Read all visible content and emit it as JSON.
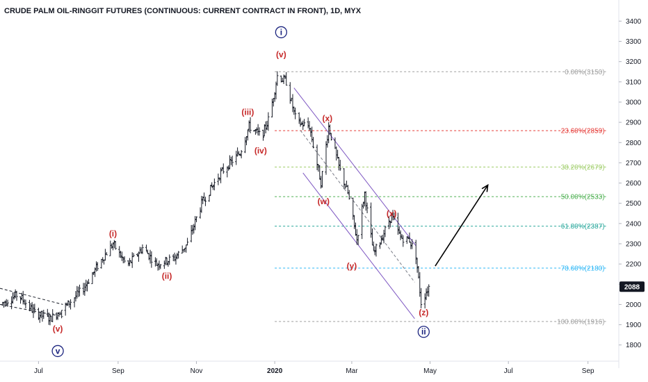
{
  "chart_data": {
    "type": "ohlc",
    "title": "CRUDE PALM OIL-RINGGIT FUTURES (CONTINUOUS: CURRENT CONTRACT IN FRONT), 1D, MYX",
    "xlabel": "",
    "ylabel": "",
    "ylim": [
      1720,
      3470
    ],
    "y_ticks": [
      1800,
      1900,
      2000,
      2100,
      2200,
      2300,
      2400,
      2500,
      2600,
      2700,
      2800,
      2900,
      3000,
      3100,
      3200,
      3300,
      3400
    ],
    "x_ticks": [
      {
        "label": "Jul",
        "date": "2019-07-01",
        "bold": false
      },
      {
        "label": "Sep",
        "date": "2019-09-01",
        "bold": false
      },
      {
        "label": "Nov",
        "date": "2019-11-01",
        "bold": false
      },
      {
        "label": "2020",
        "date": "2020-01-01",
        "bold": true
      },
      {
        "label": "Mar",
        "date": "2020-03-01",
        "bold": false
      },
      {
        "label": "May",
        "date": "2020-05-01",
        "bold": false
      },
      {
        "label": "Jul",
        "date": "2020-07-01",
        "bold": false
      },
      {
        "label": "Sep",
        "date": "2020-09-01",
        "bold": false
      }
    ],
    "x_range": [
      "2019-06-01",
      "2020-09-25"
    ],
    "current_price": {
      "label": "2088",
      "value": 2088,
      "date": "2020-04-30"
    },
    "price_path": [
      [
        "2019-06-01",
        2000
      ],
      [
        "2019-06-15",
        2050
      ],
      [
        "2019-06-28",
        1960
      ],
      [
        "2019-07-10",
        1930
      ],
      [
        "2019-07-22",
        1990
      ],
      [
        "2019-08-05",
        2080
      ],
      [
        "2019-08-20",
        2230
      ],
      [
        "2019-08-28",
        2300
      ],
      [
        "2019-09-08",
        2190
      ],
      [
        "2019-09-20",
        2280
      ],
      [
        "2019-10-01",
        2200
      ],
      [
        "2019-10-15",
        2230
      ],
      [
        "2019-10-25",
        2300
      ],
      [
        "2019-11-05",
        2500
      ],
      [
        "2019-11-20",
        2650
      ],
      [
        "2019-12-05",
        2750
      ],
      [
        "2019-12-12",
        2880
      ],
      [
        "2019-12-22",
        2830
      ],
      [
        "2019-12-28",
        2930
      ],
      [
        "2020-01-03",
        3130
      ],
      [
        "2020-01-10",
        3100
      ],
      [
        "2020-01-18",
        2900
      ],
      [
        "2020-01-28",
        2880
      ],
      [
        "2020-02-06",
        2600
      ],
      [
        "2020-02-12",
        2880
      ],
      [
        "2020-02-20",
        2680
      ],
      [
        "2020-02-27",
        2550
      ],
      [
        "2020-03-05",
        2320
      ],
      [
        "2020-03-11",
        2550
      ],
      [
        "2020-03-18",
        2250
      ],
      [
        "2020-03-25",
        2340
      ],
      [
        "2020-04-01",
        2440
      ],
      [
        "2020-04-08",
        2330
      ],
      [
        "2020-04-15",
        2320
      ],
      [
        "2020-04-20",
        2240
      ],
      [
        "2020-04-24",
        2010
      ],
      [
        "2020-04-30",
        2088
      ]
    ],
    "fib_levels": [
      {
        "label": "0.00%(3150)",
        "value": 3150,
        "color": "#9e9e9e"
      },
      {
        "label": "23.60%(2859)",
        "value": 2859,
        "color": "#e53935"
      },
      {
        "label": "38.20%(2679)",
        "value": 2679,
        "color": "#9ccc65"
      },
      {
        "label": "50.00%(2533)",
        "value": 2533,
        "color": "#4caf50"
      },
      {
        "label": "61.80%(2387)",
        "value": 2387,
        "color": "#26a69a"
      },
      {
        "label": "78.60%(2180)",
        "value": 2180,
        "color": "#29b6f6"
      },
      {
        "label": "100.00%(1916)",
        "value": 1916,
        "color": "#9e9e9e"
      }
    ],
    "fib_range": [
      "2020-01-01",
      "2020-09-15"
    ],
    "wave_labels": [
      {
        "text": "(v)",
        "date": "2019-07-16",
        "value": 1880,
        "kind": "red"
      },
      {
        "text": "v",
        "date": "2019-07-16",
        "value": 1770,
        "kind": "circle"
      },
      {
        "text": "(i)",
        "date": "2019-08-28",
        "value": 2350,
        "kind": "red"
      },
      {
        "text": "(ii)",
        "date": "2019-10-09",
        "value": 2140,
        "kind": "red"
      },
      {
        "text": "(iii)",
        "date": "2019-12-11",
        "value": 2950,
        "kind": "red"
      },
      {
        "text": "(iv)",
        "date": "2019-12-21",
        "value": 2760,
        "kind": "red"
      },
      {
        "text": "(v)",
        "date": "2020-01-06",
        "value": 3235,
        "kind": "red"
      },
      {
        "text": "i",
        "date": "2020-01-06",
        "value": 3345,
        "kind": "circle"
      },
      {
        "text": "(x)",
        "date": "2020-02-11",
        "value": 2920,
        "kind": "red"
      },
      {
        "text": "(w)",
        "date": "2020-02-08",
        "value": 2510,
        "kind": "red"
      },
      {
        "text": "(x)",
        "date": "2020-04-01",
        "value": 2450,
        "kind": "red"
      },
      {
        "text": "(y)",
        "date": "2020-03-01",
        "value": 2190,
        "kind": "red"
      },
      {
        "text": "(z)",
        "date": "2020-04-26",
        "value": 1960,
        "kind": "red"
      },
      {
        "text": "ii",
        "date": "2020-04-26",
        "value": 1865,
        "kind": "circle"
      }
    ],
    "channel": {
      "upper": [
        [
          "2020-01-16",
          3070
        ],
        [
          "2020-04-20",
          2290
        ]
      ],
      "lower": [
        [
          "2020-01-23",
          2650
        ],
        [
          "2020-04-19",
          1930
        ]
      ],
      "mid": [
        [
          "2020-01-21",
          2860
        ],
        [
          "2020-04-19",
          2110
        ]
      ]
    },
    "wedge": {
      "upper": [
        [
          "2019-06-01",
          2080
        ],
        [
          "2019-07-20",
          2000
        ]
      ],
      "lower": [
        [
          "2019-06-01",
          2000
        ],
        [
          "2019-07-20",
          1940
        ]
      ]
    },
    "projection_arrow": [
      [
        "2020-05-05",
        2190
      ],
      [
        "2020-06-15",
        2590
      ]
    ]
  },
  "colors": {
    "bars": "#131722",
    "wave_red": "#c62828",
    "wave_circle": "#1a237e",
    "channel": "#7e57c2",
    "price_tag_bg": "#131722",
    "axis": "#131722"
  }
}
